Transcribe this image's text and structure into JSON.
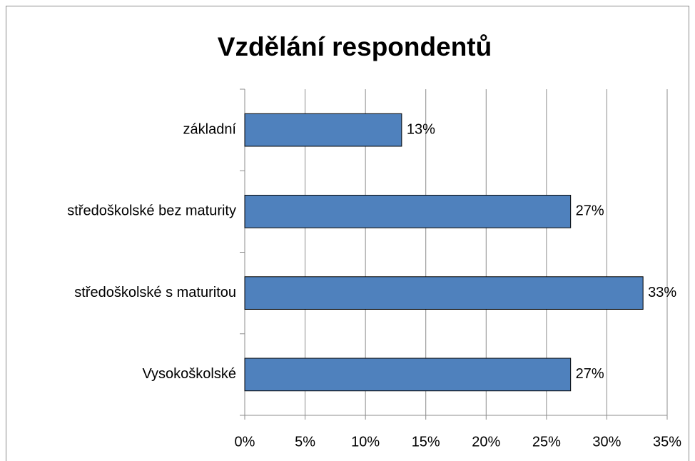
{
  "chart_data": {
    "type": "bar",
    "orientation": "horizontal",
    "title": "Vzdělání respondentů",
    "categories": [
      "základní",
      "středoškolské bez maturity",
      "středoškolské s maturitou",
      "Vysokoškolské"
    ],
    "values": [
      13,
      27,
      33,
      27
    ],
    "value_labels": [
      "13%",
      "27%",
      "33%",
      "27%"
    ],
    "color": "#4f81bd",
    "xlim": [
      0,
      35
    ],
    "xticks": [
      {
        "value": 0,
        "label": "0%"
      },
      {
        "value": 5,
        "label": "5%"
      },
      {
        "value": 10,
        "label": "10%"
      },
      {
        "value": 15,
        "label": "15%"
      },
      {
        "value": 20,
        "label": "20%"
      },
      {
        "value": 25,
        "label": "25%"
      },
      {
        "value": 30,
        "label": "30%"
      },
      {
        "value": 35,
        "label": "35%"
      }
    ],
    "grid": true
  }
}
